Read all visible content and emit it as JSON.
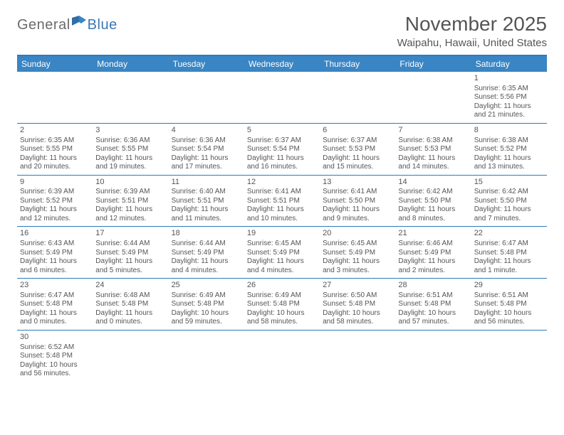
{
  "logo": {
    "part1": "General",
    "part2": "Blue"
  },
  "title": "November 2025",
  "location": "Waipahu, Hawaii, United States",
  "colors": {
    "header_bg": "#3a85c4",
    "border": "#2b7bbd",
    "text": "#555555",
    "logo_blue": "#3a78b5",
    "background": "#ffffff"
  },
  "day_headers": [
    "Sunday",
    "Monday",
    "Tuesday",
    "Wednesday",
    "Thursday",
    "Friday",
    "Saturday"
  ],
  "weeks": [
    [
      null,
      null,
      null,
      null,
      null,
      null,
      {
        "d": "1",
        "sr": "Sunrise: 6:35 AM",
        "ss": "Sunset: 5:56 PM",
        "dl1": "Daylight: 11 hours",
        "dl2": "and 21 minutes."
      }
    ],
    [
      {
        "d": "2",
        "sr": "Sunrise: 6:35 AM",
        "ss": "Sunset: 5:55 PM",
        "dl1": "Daylight: 11 hours",
        "dl2": "and 20 minutes."
      },
      {
        "d": "3",
        "sr": "Sunrise: 6:36 AM",
        "ss": "Sunset: 5:55 PM",
        "dl1": "Daylight: 11 hours",
        "dl2": "and 19 minutes."
      },
      {
        "d": "4",
        "sr": "Sunrise: 6:36 AM",
        "ss": "Sunset: 5:54 PM",
        "dl1": "Daylight: 11 hours",
        "dl2": "and 17 minutes."
      },
      {
        "d": "5",
        "sr": "Sunrise: 6:37 AM",
        "ss": "Sunset: 5:54 PM",
        "dl1": "Daylight: 11 hours",
        "dl2": "and 16 minutes."
      },
      {
        "d": "6",
        "sr": "Sunrise: 6:37 AM",
        "ss": "Sunset: 5:53 PM",
        "dl1": "Daylight: 11 hours",
        "dl2": "and 15 minutes."
      },
      {
        "d": "7",
        "sr": "Sunrise: 6:38 AM",
        "ss": "Sunset: 5:53 PM",
        "dl1": "Daylight: 11 hours",
        "dl2": "and 14 minutes."
      },
      {
        "d": "8",
        "sr": "Sunrise: 6:38 AM",
        "ss": "Sunset: 5:52 PM",
        "dl1": "Daylight: 11 hours",
        "dl2": "and 13 minutes."
      }
    ],
    [
      {
        "d": "9",
        "sr": "Sunrise: 6:39 AM",
        "ss": "Sunset: 5:52 PM",
        "dl1": "Daylight: 11 hours",
        "dl2": "and 12 minutes."
      },
      {
        "d": "10",
        "sr": "Sunrise: 6:39 AM",
        "ss": "Sunset: 5:51 PM",
        "dl1": "Daylight: 11 hours",
        "dl2": "and 12 minutes."
      },
      {
        "d": "11",
        "sr": "Sunrise: 6:40 AM",
        "ss": "Sunset: 5:51 PM",
        "dl1": "Daylight: 11 hours",
        "dl2": "and 11 minutes."
      },
      {
        "d": "12",
        "sr": "Sunrise: 6:41 AM",
        "ss": "Sunset: 5:51 PM",
        "dl1": "Daylight: 11 hours",
        "dl2": "and 10 minutes."
      },
      {
        "d": "13",
        "sr": "Sunrise: 6:41 AM",
        "ss": "Sunset: 5:50 PM",
        "dl1": "Daylight: 11 hours",
        "dl2": "and 9 minutes."
      },
      {
        "d": "14",
        "sr": "Sunrise: 6:42 AM",
        "ss": "Sunset: 5:50 PM",
        "dl1": "Daylight: 11 hours",
        "dl2": "and 8 minutes."
      },
      {
        "d": "15",
        "sr": "Sunrise: 6:42 AM",
        "ss": "Sunset: 5:50 PM",
        "dl1": "Daylight: 11 hours",
        "dl2": "and 7 minutes."
      }
    ],
    [
      {
        "d": "16",
        "sr": "Sunrise: 6:43 AM",
        "ss": "Sunset: 5:49 PM",
        "dl1": "Daylight: 11 hours",
        "dl2": "and 6 minutes."
      },
      {
        "d": "17",
        "sr": "Sunrise: 6:44 AM",
        "ss": "Sunset: 5:49 PM",
        "dl1": "Daylight: 11 hours",
        "dl2": "and 5 minutes."
      },
      {
        "d": "18",
        "sr": "Sunrise: 6:44 AM",
        "ss": "Sunset: 5:49 PM",
        "dl1": "Daylight: 11 hours",
        "dl2": "and 4 minutes."
      },
      {
        "d": "19",
        "sr": "Sunrise: 6:45 AM",
        "ss": "Sunset: 5:49 PM",
        "dl1": "Daylight: 11 hours",
        "dl2": "and 4 minutes."
      },
      {
        "d": "20",
        "sr": "Sunrise: 6:45 AM",
        "ss": "Sunset: 5:49 PM",
        "dl1": "Daylight: 11 hours",
        "dl2": "and 3 minutes."
      },
      {
        "d": "21",
        "sr": "Sunrise: 6:46 AM",
        "ss": "Sunset: 5:49 PM",
        "dl1": "Daylight: 11 hours",
        "dl2": "and 2 minutes."
      },
      {
        "d": "22",
        "sr": "Sunrise: 6:47 AM",
        "ss": "Sunset: 5:48 PM",
        "dl1": "Daylight: 11 hours",
        "dl2": "and 1 minute."
      }
    ],
    [
      {
        "d": "23",
        "sr": "Sunrise: 6:47 AM",
        "ss": "Sunset: 5:48 PM",
        "dl1": "Daylight: 11 hours",
        "dl2": "and 0 minutes."
      },
      {
        "d": "24",
        "sr": "Sunrise: 6:48 AM",
        "ss": "Sunset: 5:48 PM",
        "dl1": "Daylight: 11 hours",
        "dl2": "and 0 minutes."
      },
      {
        "d": "25",
        "sr": "Sunrise: 6:49 AM",
        "ss": "Sunset: 5:48 PM",
        "dl1": "Daylight: 10 hours",
        "dl2": "and 59 minutes."
      },
      {
        "d": "26",
        "sr": "Sunrise: 6:49 AM",
        "ss": "Sunset: 5:48 PM",
        "dl1": "Daylight: 10 hours",
        "dl2": "and 58 minutes."
      },
      {
        "d": "27",
        "sr": "Sunrise: 6:50 AM",
        "ss": "Sunset: 5:48 PM",
        "dl1": "Daylight: 10 hours",
        "dl2": "and 58 minutes."
      },
      {
        "d": "28",
        "sr": "Sunrise: 6:51 AM",
        "ss": "Sunset: 5:48 PM",
        "dl1": "Daylight: 10 hours",
        "dl2": "and 57 minutes."
      },
      {
        "d": "29",
        "sr": "Sunrise: 6:51 AM",
        "ss": "Sunset: 5:48 PM",
        "dl1": "Daylight: 10 hours",
        "dl2": "and 56 minutes."
      }
    ],
    [
      {
        "d": "30",
        "sr": "Sunrise: 6:52 AM",
        "ss": "Sunset: 5:48 PM",
        "dl1": "Daylight: 10 hours",
        "dl2": "and 56 minutes."
      },
      null,
      null,
      null,
      null,
      null,
      null
    ]
  ]
}
